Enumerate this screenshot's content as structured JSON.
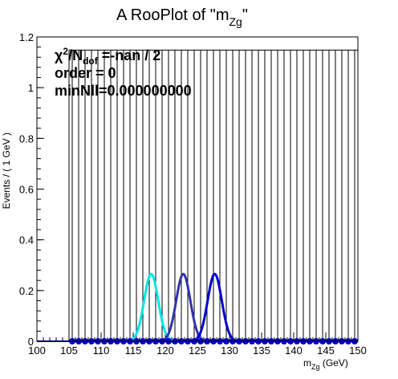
{
  "chart_data": {
    "type": "line",
    "title_main": "A RooPlot of \"m",
    "title_sub": "Zg",
    "title_end": "\"",
    "xlabel_main": "m",
    "xlabel_sub": "Zg",
    "xlabel_end": " (GeV)",
    "ylabel": "Events / ( 1 GeV )",
    "xlim": [
      100,
      150
    ],
    "ylim": [
      0,
      1.2
    ],
    "x_ticks": [
      100,
      105,
      110,
      115,
      120,
      125,
      130,
      135,
      140,
      145,
      150
    ],
    "y_ticks": [
      0,
      0.2,
      0.4,
      0.6,
      0.8,
      1,
      1.2
    ],
    "y_tick_labels": [
      "0",
      "0.2",
      "0.4",
      "0.6",
      "0.8",
      "1",
      "1.2"
    ],
    "data_points": {
      "x_start": 105.5,
      "x_end": 149.5,
      "x_step": 1,
      "y": 0,
      "error_high": 1.148,
      "color": "#0000cc"
    },
    "series": [
      {
        "shape": "gaussian",
        "mean": 117.8,
        "sigma": 1.1,
        "peak": 0.265,
        "color": "#00e5e5"
      },
      {
        "shape": "gaussian",
        "mean": 122.8,
        "sigma": 1.1,
        "peak": 0.265,
        "color": "#3333aa"
      },
      {
        "shape": "gaussian",
        "mean": 127.7,
        "sigma": 1.1,
        "peak": 0.265,
        "color": "#0000cc"
      }
    ],
    "stats": {
      "chi2_symbol": "χ",
      "chi2_sup": "2",
      "chi2_slash": "/N",
      "chi2_sub": "dof",
      "chi2_value": " =-nan / 2",
      "order_line": "order = 0",
      "minnll_line": "minNll=0.000000000"
    }
  }
}
